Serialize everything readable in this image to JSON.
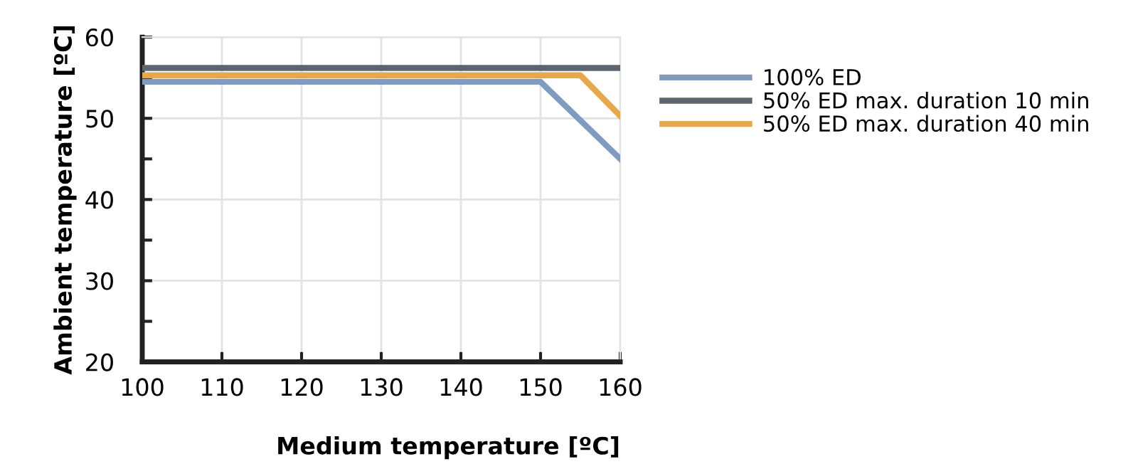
{
  "chart_data": {
    "type": "line",
    "xlabel": "Medium temperature [ºC]",
    "ylabel": "Ambient temperature [ºC]",
    "xlim": [
      100,
      160
    ],
    "xticks": [
      100,
      110,
      120,
      130,
      140,
      150,
      160
    ],
    "ylim": [
      20,
      60
    ],
    "yticks": [
      20,
      {
        "value": 25,
        "label": null
      },
      30,
      {
        "value": 35,
        "label": null
      },
      40,
      {
        "value": 45,
        "label": null
      },
      50,
      {
        "value": 55,
        "label": null
      },
      60
    ],
    "grid": true,
    "legend": "right",
    "line_style": "solid",
    "marker": "none",
    "series": [
      {
        "name": "100% ED",
        "color": "#7f9cc0",
        "x": [
          100,
          150,
          160
        ],
        "values": [
          54.5,
          54.5,
          45
        ]
      },
      {
        "name": "50% ED max. duration 10 min",
        "color": "#5c6670",
        "x": [
          100,
          160
        ],
        "values": [
          56.2,
          56.2
        ]
      },
      {
        "name": "50% ED max. duration 40 min",
        "color": "#e8a84a",
        "x": [
          100,
          155,
          160
        ],
        "values": [
          55.3,
          55.3,
          50.3
        ]
      }
    ]
  }
}
